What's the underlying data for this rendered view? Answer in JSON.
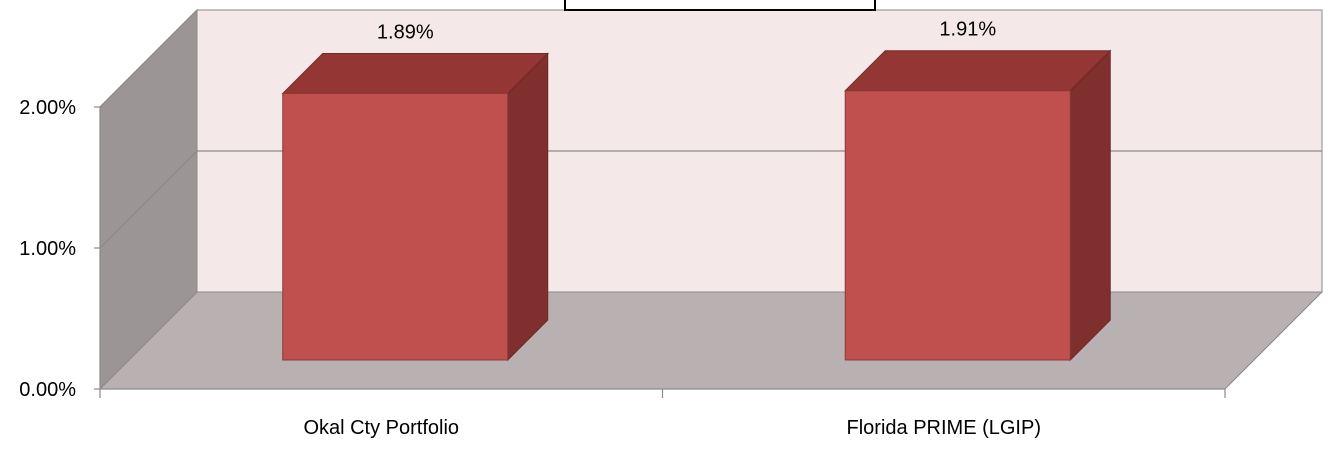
{
  "chart_data": {
    "type": "bar",
    "style": "3d-column",
    "title": "",
    "xlabel": "",
    "ylabel": "",
    "categories": [
      "Okal Cty Portfolio",
      "Florida PRIME (LGIP)"
    ],
    "series": [
      {
        "values": [
          1.89,
          1.91
        ],
        "data_labels": [
          "1.89%",
          "1.91%"
        ]
      }
    ],
    "ylim": [
      0,
      2
    ],
    "yticks": [
      "0.00%",
      "1.00%",
      "2.00%"
    ],
    "grid": true,
    "legend": "none",
    "colors": {
      "bar_front": "#C0504D",
      "bar_top": "#943634",
      "bar_side": "#7F2F2E",
      "back_wall": "#F5E8E8",
      "side_wall": "#9C9595",
      "floor": "#B9B1B1",
      "gridline": "#8A8A8A"
    }
  }
}
